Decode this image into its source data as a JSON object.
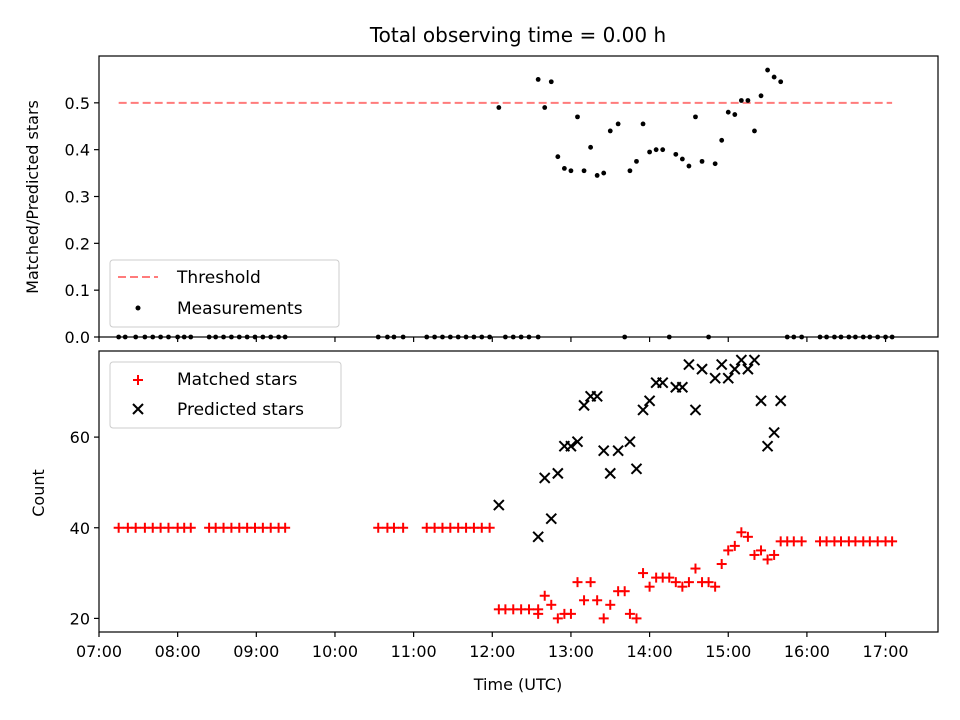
{
  "chart_data": [
    {
      "type": "scatter",
      "title": "Total observing time = 0.00 h",
      "xlabel": "",
      "ylabel": "Matched/Predicted stars",
      "xlim": [
        "07:00",
        "17:40"
      ],
      "ylim": [
        0,
        0.6
      ],
      "yticks": [
        0.0,
        0.1,
        0.2,
        0.3,
        0.4,
        0.5
      ],
      "yticklabels": [
        "0.0",
        "0.1",
        "0.2",
        "0.3",
        "0.4",
        "0.5"
      ],
      "grid": false,
      "legend_position": "lower-left",
      "threshold": {
        "name": "Threshold",
        "y": 0.5,
        "x_start": "07:15",
        "x_end": "17:05",
        "color": "#ff7b7b",
        "style": "dashed"
      },
      "series": [
        {
          "name": "Measurements",
          "marker": "dot",
          "color": "#000000",
          "points": [
            [
              "07:15",
              0
            ],
            [
              "07:20",
              0
            ],
            [
              "07:28",
              0
            ],
            [
              "07:35",
              0
            ],
            [
              "07:41",
              0
            ],
            [
              "07:47",
              0
            ],
            [
              "07:53",
              0
            ],
            [
              "08:00",
              0
            ],
            [
              "08:05",
              0
            ],
            [
              "08:10",
              0
            ],
            [
              "08:24",
              0
            ],
            [
              "08:29",
              0
            ],
            [
              "08:35",
              0
            ],
            [
              "08:41",
              0
            ],
            [
              "08:47",
              0
            ],
            [
              "08:53",
              0
            ],
            [
              "08:59",
              0
            ],
            [
              "09:05",
              0
            ],
            [
              "09:11",
              0
            ],
            [
              "09:17",
              0
            ],
            [
              "09:22",
              0
            ],
            [
              "10:33",
              0
            ],
            [
              "10:40",
              0
            ],
            [
              "10:45",
              0
            ],
            [
              "10:52",
              0
            ],
            [
              "11:10",
              0
            ],
            [
              "11:16",
              0
            ],
            [
              "11:22",
              0
            ],
            [
              "11:28",
              0
            ],
            [
              "11:34",
              0
            ],
            [
              "11:40",
              0
            ],
            [
              "11:46",
              0
            ],
            [
              "11:52",
              0
            ],
            [
              "11:58",
              0
            ],
            [
              "12:05",
              0.49
            ],
            [
              "12:10",
              0
            ],
            [
              "12:16",
              0
            ],
            [
              "12:22",
              0
            ],
            [
              "12:28",
              0
            ],
            [
              "12:35",
              0
            ],
            [
              "12:35",
              0.55
            ],
            [
              "12:40",
              0.49
            ],
            [
              "12:45",
              0.545
            ],
            [
              "12:50",
              0.385
            ],
            [
              "12:55",
              0.36
            ],
            [
              "13:00",
              0.355
            ],
            [
              "13:05",
              0.47
            ],
            [
              "13:10",
              0.355
            ],
            [
              "13:15",
              0.405
            ],
            [
              "13:20",
              0.345
            ],
            [
              "13:25",
              0.35
            ],
            [
              "13:30",
              0.44
            ],
            [
              "13:36",
              0.455
            ],
            [
              "13:41",
              0
            ],
            [
              "13:45",
              0.355
            ],
            [
              "13:50",
              0.375
            ],
            [
              "13:55",
              0.455
            ],
            [
              "14:00",
              0.395
            ],
            [
              "14:05",
              0.4
            ],
            [
              "14:10",
              0.4
            ],
            [
              "14:15",
              0
            ],
            [
              "14:20",
              0.39
            ],
            [
              "14:25",
              0.38
            ],
            [
              "14:30",
              0.365
            ],
            [
              "14:35",
              0.47
            ],
            [
              "14:40",
              0.375
            ],
            [
              "14:45",
              0
            ],
            [
              "14:50",
              0.37
            ],
            [
              "14:55",
              0.42
            ],
            [
              "15:00",
              0.48
            ],
            [
              "15:05",
              0.475
            ],
            [
              "15:10",
              0.505
            ],
            [
              "15:15",
              0.505
            ],
            [
              "15:20",
              0.44
            ],
            [
              "15:25",
              0.515
            ],
            [
              "15:30",
              0.57
            ],
            [
              "15:35",
              0.555
            ],
            [
              "15:40",
              0.545
            ],
            [
              "15:45",
              0
            ],
            [
              "15:50",
              0
            ],
            [
              "15:56",
              0
            ],
            [
              "16:10",
              0
            ],
            [
              "16:15",
              0
            ],
            [
              "16:21",
              0
            ],
            [
              "16:26",
              0
            ],
            [
              "16:32",
              0
            ],
            [
              "16:37",
              0
            ],
            [
              "16:43",
              0
            ],
            [
              "16:48",
              0
            ],
            [
              "16:54",
              0
            ],
            [
              "17:00",
              0
            ],
            [
              "17:05",
              0
            ]
          ]
        }
      ]
    },
    {
      "type": "scatter",
      "title": "",
      "xlabel": "Time (UTC)",
      "ylabel": "Count",
      "xlim": [
        "07:00",
        "17:40"
      ],
      "ylim": [
        17,
        79
      ],
      "yticks": [
        20,
        40,
        60
      ],
      "yticklabels": [
        "20",
        "40",
        "60"
      ],
      "xticks": [
        "07:00",
        "08:00",
        "09:00",
        "10:00",
        "11:00",
        "12:00",
        "13:00",
        "14:00",
        "15:00",
        "16:00",
        "17:00"
      ],
      "grid": false,
      "legend_position": "upper-left",
      "series": [
        {
          "name": "Matched stars",
          "marker": "plus",
          "color": "#ff0000",
          "points": [
            [
              "07:15",
              40
            ],
            [
              "07:22",
              40
            ],
            [
              "07:28",
              40
            ],
            [
              "07:35",
              40
            ],
            [
              "07:41",
              40
            ],
            [
              "07:47",
              40
            ],
            [
              "07:53",
              40
            ],
            [
              "08:00",
              40
            ],
            [
              "08:05",
              40
            ],
            [
              "08:10",
              40
            ],
            [
              "08:24",
              40
            ],
            [
              "08:29",
              40
            ],
            [
              "08:35",
              40
            ],
            [
              "08:41",
              40
            ],
            [
              "08:47",
              40
            ],
            [
              "08:53",
              40
            ],
            [
              "08:59",
              40
            ],
            [
              "09:05",
              40
            ],
            [
              "09:11",
              40
            ],
            [
              "09:17",
              40
            ],
            [
              "09:22",
              40
            ],
            [
              "10:33",
              40
            ],
            [
              "10:40",
              40
            ],
            [
              "10:45",
              40
            ],
            [
              "10:52",
              40
            ],
            [
              "11:10",
              40
            ],
            [
              "11:16",
              40
            ],
            [
              "11:22",
              40
            ],
            [
              "11:28",
              40
            ],
            [
              "11:34",
              40
            ],
            [
              "11:40",
              40
            ],
            [
              "11:46",
              40
            ],
            [
              "11:52",
              40
            ],
            [
              "11:58",
              40
            ],
            [
              "12:05",
              22
            ],
            [
              "12:10",
              22
            ],
            [
              "12:16",
              22
            ],
            [
              "12:22",
              22
            ],
            [
              "12:28",
              22
            ],
            [
              "12:35",
              22
            ],
            [
              "12:35",
              21
            ],
            [
              "12:40",
              25
            ],
            [
              "12:45",
              23
            ],
            [
              "12:50",
              20
            ],
            [
              "12:55",
              21
            ],
            [
              "13:00",
              21
            ],
            [
              "13:05",
              28
            ],
            [
              "13:10",
              24
            ],
            [
              "13:15",
              28
            ],
            [
              "13:20",
              24
            ],
            [
              "13:25",
              20
            ],
            [
              "13:30",
              23
            ],
            [
              "13:36",
              26
            ],
            [
              "13:41",
              26
            ],
            [
              "13:45",
              21
            ],
            [
              "13:50",
              20
            ],
            [
              "13:55",
              30
            ],
            [
              "14:00",
              27
            ],
            [
              "14:05",
              29
            ],
            [
              "14:10",
              29
            ],
            [
              "14:15",
              29
            ],
            [
              "14:20",
              28
            ],
            [
              "14:25",
              27
            ],
            [
              "14:30",
              28
            ],
            [
              "14:35",
              31
            ],
            [
              "14:40",
              28
            ],
            [
              "14:45",
              28
            ],
            [
              "14:50",
              27
            ],
            [
              "14:55",
              32
            ],
            [
              "15:00",
              35
            ],
            [
              "15:05",
              36
            ],
            [
              "15:10",
              39
            ],
            [
              "15:15",
              38
            ],
            [
              "15:20",
              34
            ],
            [
              "15:25",
              35
            ],
            [
              "15:30",
              33
            ],
            [
              "15:35",
              34
            ],
            [
              "15:40",
              37
            ],
            [
              "15:45",
              37
            ],
            [
              "15:50",
              37
            ],
            [
              "15:56",
              37
            ],
            [
              "16:10",
              37
            ],
            [
              "16:15",
              37
            ],
            [
              "16:21",
              37
            ],
            [
              "16:26",
              37
            ],
            [
              "16:32",
              37
            ],
            [
              "16:37",
              37
            ],
            [
              "16:43",
              37
            ],
            [
              "16:48",
              37
            ],
            [
              "16:54",
              37
            ],
            [
              "17:00",
              37
            ],
            [
              "17:05",
              37
            ]
          ]
        },
        {
          "name": "Predicted stars",
          "marker": "x",
          "color": "#000000",
          "points": [
            [
              "12:05",
              45
            ],
            [
              "12:35",
              38
            ],
            [
              "12:40",
              51
            ],
            [
              "12:45",
              42
            ],
            [
              "12:50",
              52
            ],
            [
              "12:55",
              58
            ],
            [
              "13:00",
              58
            ],
            [
              "13:05",
              59
            ],
            [
              "13:10",
              67
            ],
            [
              "13:15",
              69
            ],
            [
              "13:20",
              69
            ],
            [
              "13:25",
              57
            ],
            [
              "13:30",
              52
            ],
            [
              "13:36",
              57
            ],
            [
              "13:45",
              59
            ],
            [
              "13:50",
              53
            ],
            [
              "13:55",
              66
            ],
            [
              "14:00",
              68
            ],
            [
              "14:05",
              72
            ],
            [
              "14:10",
              72
            ],
            [
              "14:20",
              71
            ],
            [
              "14:25",
              71
            ],
            [
              "14:30",
              76
            ],
            [
              "14:35",
              66
            ],
            [
              "14:40",
              75
            ],
            [
              "14:50",
              73
            ],
            [
              "14:55",
              76
            ],
            [
              "15:00",
              73
            ],
            [
              "15:05",
              75
            ],
            [
              "15:10",
              77
            ],
            [
              "15:15",
              75
            ],
            [
              "15:20",
              77
            ],
            [
              "15:25",
              68
            ],
            [
              "15:30",
              58
            ],
            [
              "15:35",
              61
            ],
            [
              "15:40",
              68
            ]
          ]
        }
      ]
    }
  ]
}
